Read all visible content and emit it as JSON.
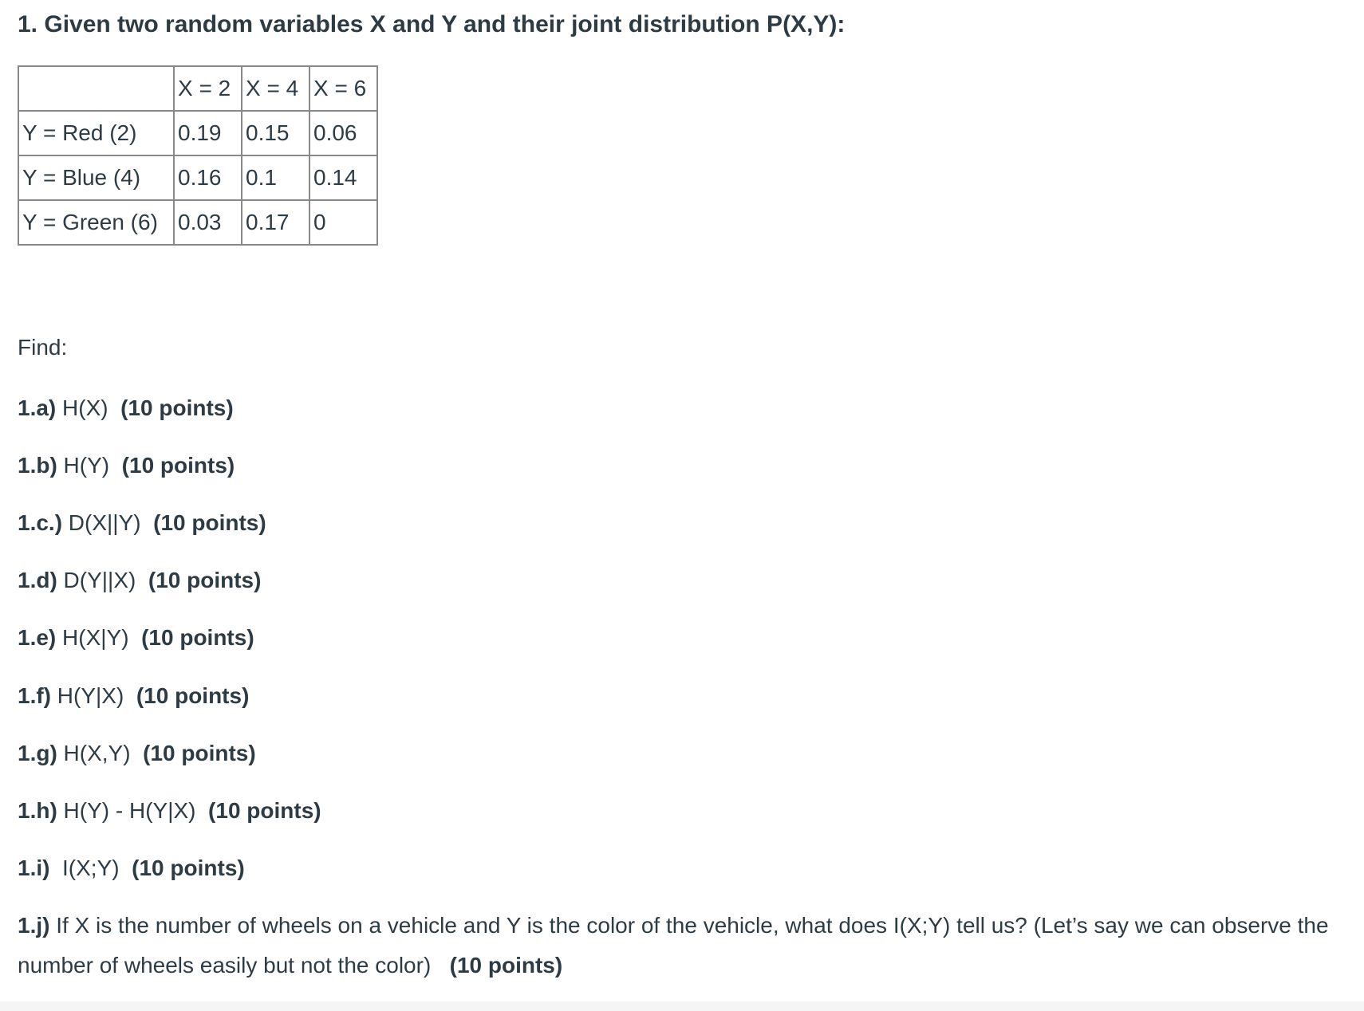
{
  "question_title": "1. Given two random variables X and Y and their joint distribution P(X,Y):",
  "table": {
    "header": [
      "",
      "X = 2",
      "X = 4",
      "X = 6"
    ],
    "rows": [
      [
        "Y = Red (2)",
        "0.19",
        "0.15",
        "0.06"
      ],
      [
        "Y = Blue (4)",
        "0.16",
        "0.1",
        "0.14"
      ],
      [
        "Y = Green (6)",
        "0.03",
        "0.17",
        "0"
      ]
    ]
  },
  "find_label": "Find:",
  "items": [
    {
      "label": "1.a)",
      "text": " H(X)  ",
      "points": "(10 points)"
    },
    {
      "label": "1.b)",
      "text": " H(Y)  ",
      "points": "(10 points)"
    },
    {
      "label": "1.c.)",
      "text": " D(X||Y)  ",
      "points": "(10 points)"
    },
    {
      "label": "1.d)",
      "text": " D(Y||X)  ",
      "points": "(10 points)"
    },
    {
      "label": "1.e)",
      "text": " H(X|Y)  ",
      "points": "(10 points)"
    },
    {
      "label": "1.f)",
      "text": " H(Y|X)  ",
      "points": "(10 points)"
    },
    {
      "label": "1.g)",
      "text": " H(X,Y)  ",
      "points": "(10 points)"
    },
    {
      "label": "1.h)",
      "text": " H(Y) - H(Y|X)  ",
      "points": "(10 points)"
    },
    {
      "label": "1.i)",
      "text": "  I(X;Y)  ",
      "points": "(10 points)"
    },
    {
      "label": "1.j)",
      "text": " If X is the number of wheels on a vehicle and Y is the color of the vehicle, what does I(X;Y) tell us? (Let’s say we can observe the number of wheels easily but not the color)   ",
      "points": "(10 points)"
    }
  ]
}
